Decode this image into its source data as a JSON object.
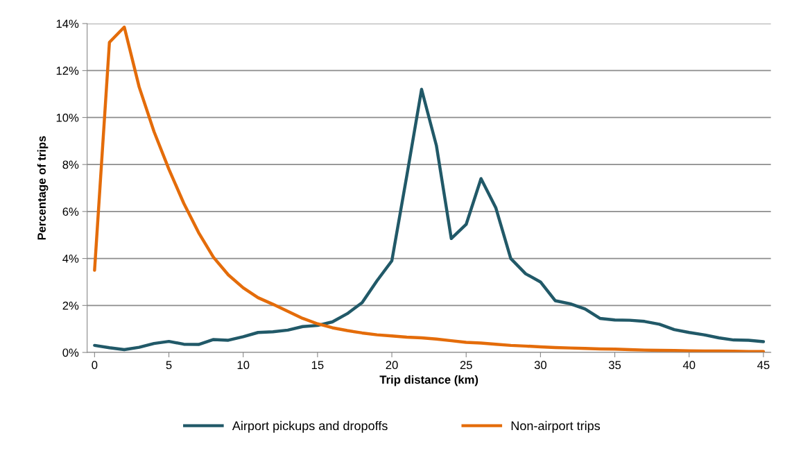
{
  "chart_data": {
    "type": "line",
    "xlabel": "Trip distance (km)",
    "ylabel": "Percentage of trips",
    "x": [
      0,
      1,
      2,
      3,
      4,
      5,
      6,
      7,
      8,
      9,
      10,
      11,
      12,
      13,
      14,
      15,
      16,
      17,
      18,
      19,
      20,
      21,
      22,
      23,
      24,
      25,
      26,
      27,
      28,
      29,
      30,
      31,
      32,
      33,
      34,
      35,
      36,
      37,
      38,
      39,
      40,
      41,
      42,
      43,
      44,
      45
    ],
    "series": [
      {
        "name": "Airport pickups and dropoffs",
        "color": "#215968",
        "values": [
          0.3,
          0.2,
          0.12,
          0.22,
          0.38,
          0.47,
          0.35,
          0.34,
          0.55,
          0.52,
          0.67,
          0.85,
          0.88,
          0.95,
          1.1,
          1.15,
          1.3,
          1.65,
          2.12,
          3.05,
          3.9,
          7.5,
          11.2,
          8.8,
          4.85,
          5.45,
          7.4,
          6.15,
          4.0,
          3.35,
          3.0,
          2.2,
          2.07,
          1.85,
          1.45,
          1.38,
          1.37,
          1.32,
          1.2,
          0.97,
          0.85,
          0.75,
          0.62,
          0.53,
          0.52,
          0.46
        ]
      },
      {
        "name": "Non-airport trips",
        "color": "#e46c0a",
        "values": [
          3.5,
          13.2,
          13.85,
          11.3,
          9.4,
          7.8,
          6.35,
          5.1,
          4.05,
          3.3,
          2.75,
          2.33,
          2.05,
          1.75,
          1.45,
          1.22,
          1.05,
          0.93,
          0.83,
          0.75,
          0.7,
          0.65,
          0.62,
          0.57,
          0.5,
          0.43,
          0.4,
          0.35,
          0.3,
          0.27,
          0.24,
          0.21,
          0.19,
          0.17,
          0.15,
          0.14,
          0.12,
          0.1,
          0.09,
          0.08,
          0.07,
          0.06,
          0.06,
          0.05,
          0.04,
          0.04
        ]
      }
    ],
    "xlim": [
      -0.5,
      45.5
    ],
    "xticks": [
      0,
      5,
      10,
      15,
      20,
      25,
      30,
      35,
      40,
      45
    ],
    "ylim": [
      0,
      14
    ],
    "yticks": [
      {
        "value": 0,
        "label": "0%"
      },
      {
        "value": 2,
        "label": "2%"
      },
      {
        "value": 4,
        "label": "4%"
      },
      {
        "value": 6,
        "label": "6%"
      },
      {
        "value": 8,
        "label": "8%"
      },
      {
        "value": 10,
        "label": "10%"
      },
      {
        "value": 12,
        "label": "12%"
      },
      {
        "value": 14,
        "label": "14%"
      }
    ],
    "grid": "y",
    "legend": "bottom",
    "marker": "none",
    "line_style": "solid"
  }
}
